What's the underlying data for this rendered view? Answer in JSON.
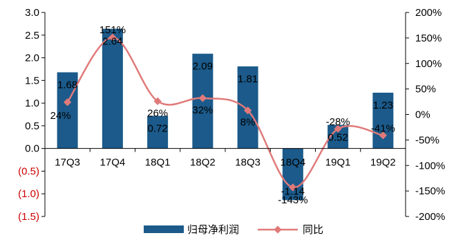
{
  "chart_data": {
    "type": "bar",
    "categories": [
      "17Q3",
      "17Q4",
      "18Q1",
      "18Q2",
      "18Q3",
      "18Q4",
      "19Q1",
      "19Q2"
    ],
    "series": [
      {
        "name": "归母净利润",
        "type": "bar",
        "axis": "left",
        "values": [
          1.68,
          2.64,
          0.72,
          2.09,
          1.81,
          -1.14,
          0.52,
          1.23
        ],
        "labels": [
          "1.68",
          "2.64",
          "0.72",
          "2.09",
          "1.81",
          "-1.14",
          "0.52",
          "1.23"
        ],
        "color": "#1b5a8a"
      },
      {
        "name": "同比",
        "type": "line",
        "axis": "right",
        "values": [
          24,
          151,
          26,
          32,
          8,
          -143,
          -28,
          -41
        ],
        "labels": [
          "24%",
          "151%",
          "26%",
          "32%",
          "8%",
          "-143%",
          "-28%",
          "-41%"
        ],
        "color": "#e07a7a"
      }
    ],
    "y_left": {
      "range": [
        -1.5,
        3.0
      ],
      "ticks": [
        3.0,
        2.5,
        2.0,
        1.5,
        1.0,
        0.5,
        0.0,
        -0.5,
        -1.0,
        -1.5
      ],
      "tick_labels": [
        "3.0",
        "2.5",
        "2.0",
        "1.5",
        "1.0",
        "0.5",
        "0.0",
        "(0.5)",
        "(1.0)",
        "(1.5)"
      ],
      "negative_color": "#cc0000"
    },
    "y_right": {
      "range": [
        -200,
        200
      ],
      "ticks": [
        200,
        150,
        100,
        50,
        0,
        -50,
        -100,
        -150,
        -200
      ],
      "tick_labels": [
        "200%",
        "150%",
        "100%",
        "50%",
        "0%",
        "-50%",
        "-100%",
        "-150%",
        "-200%"
      ]
    },
    "legend": {
      "position": "bottom",
      "items": [
        "归母净利润",
        "同比"
      ]
    },
    "grid": false,
    "title": "",
    "xlabel": "",
    "ylabel": ""
  }
}
